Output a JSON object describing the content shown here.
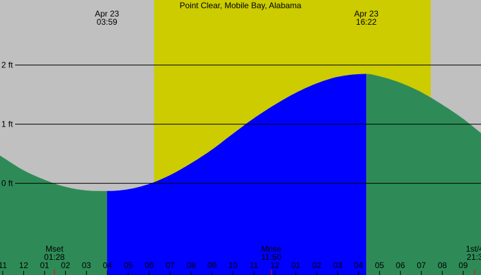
{
  "chart_data": {
    "type": "area",
    "title": "Point Clear, Mobile Bay, Alabama",
    "xlabel": "",
    "ylabel": "",
    "unit": "ft",
    "y_ticks": [
      {
        "value": 0,
        "label": "0 ft"
      },
      {
        "value": 1,
        "label": "1 ft"
      },
      {
        "value": 2,
        "label": "2 ft"
      }
    ],
    "hour_ticks": [
      "11",
      "12",
      "01",
      "02",
      "03",
      "04",
      "05",
      "06",
      "07",
      "08",
      "09",
      "10",
      "11",
      "12",
      "01",
      "02",
      "03",
      "04",
      "05",
      "06",
      "07",
      "08",
      "09"
    ],
    "x_range_hours": [
      -1.13,
      21.85
    ],
    "y_range_ft": [
      -1.55,
      3.1
    ],
    "events": [
      {
        "kind": "low tide",
        "date": "Apr 23",
        "time": "03:59",
        "hour": 3.98
      },
      {
        "kind": "high tide",
        "date": "Apr 23",
        "time": "16:22",
        "hour": 16.37
      }
    ],
    "daylight": {
      "start_hour": 6.23,
      "end_hour": 19.45
    },
    "moon": [
      {
        "label": "Mset",
        "time": "01:28",
        "hour": 1.47
      },
      {
        "label": "Mrise",
        "time": "11:50",
        "hour": 11.83
      },
      {
        "label": "1st/4",
        "time": "21:3",
        "hour": 21.55
      }
    ],
    "tide_curve": {
      "hours": [
        -1.13,
        0,
        1,
        2,
        3,
        3.98,
        5,
        6,
        7,
        8,
        9,
        10,
        11,
        12,
        13,
        14,
        15,
        16.37,
        17,
        18,
        19,
        20,
        21,
        21.85
      ],
      "heights_ft": [
        0.47,
        0.22,
        0.06,
        -0.06,
        -0.12,
        -0.13,
        -0.1,
        -0.01,
        0.14,
        0.34,
        0.57,
        0.84,
        1.1,
        1.33,
        1.53,
        1.69,
        1.8,
        1.85,
        1.81,
        1.7,
        1.54,
        1.33,
        1.09,
        0.85
      ]
    },
    "colors": {
      "background": "#c0c0c0",
      "daylight": "#cccc00",
      "tide_outside": "#2e8b57",
      "tide_between_events": "#0000ff",
      "gridline": "#000000",
      "moon_tick": "#ff0000"
    }
  }
}
